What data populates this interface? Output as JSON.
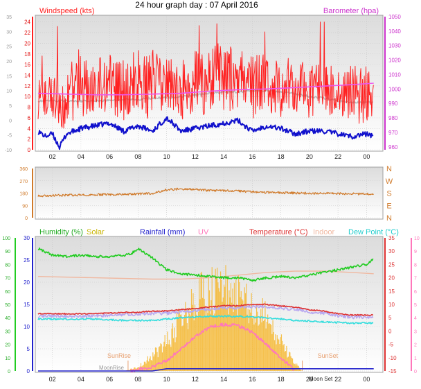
{
  "title": "24 hour graph day : 07 April 2016",
  "colors": {
    "wind": "#ff2020",
    "windDark": "#cc0000",
    "avgwind": "#1010cc",
    "baro": "#cc33cc",
    "baroLine": "#ee55ee",
    "temp_shadow": "#b8b8b8",
    "dir": "#d07a2a",
    "humidity": "#22cc22",
    "solar": "#f5b830",
    "rain": "#2222cc",
    "uv": "#ff77bb",
    "temp": "#dd3333",
    "indoor": "#f0b8a0",
    "dew": "#33dddd",
    "lilac": "#b8a8f0"
  },
  "chart_data": [
    {
      "type": "line",
      "name": "wind-panel",
      "left_axis_label": "Windspeed (kts)",
      "right_axis_label": "Barometer (hpa)",
      "x_ticks": [
        "02",
        "04",
        "06",
        "08",
        "10",
        "12",
        "14",
        "16",
        "18",
        "20",
        "22",
        "00"
      ],
      "x_hours": [
        1,
        3,
        5,
        7,
        9,
        11,
        13,
        15,
        17,
        19,
        21,
        23
      ],
      "left_ticks_wind": [
        0,
        2,
        4,
        6,
        8,
        10,
        12,
        14,
        16,
        18,
        20,
        22,
        24
      ],
      "left_ticks_temp": [
        -10,
        -5,
        0,
        5,
        10,
        15,
        20,
        25,
        30,
        35
      ],
      "right_ticks": [
        960,
        970,
        980,
        990,
        1000,
        1010,
        1020,
        1030,
        1040,
        1050
      ],
      "wind_range": [
        0,
        25
      ],
      "baro_range": [
        958,
        1050
      ],
      "series": [
        {
          "name": "Gust",
          "x_hours": [
            0,
            1,
            2,
            3,
            4,
            5,
            6,
            7,
            8,
            9,
            10,
            11,
            12,
            13,
            14,
            15,
            16,
            17,
            18,
            19,
            20,
            21,
            22,
            23,
            23.5
          ],
          "values": [
            6,
            7,
            9,
            11,
            10,
            11,
            10,
            12,
            12,
            10,
            11,
            12,
            13,
            13,
            12,
            12,
            11,
            11,
            10,
            10,
            10,
            9,
            9,
            9,
            8
          ]
        },
        {
          "name": "Average",
          "x_hours": [
            0,
            0.5,
            1,
            1.5,
            2,
            3,
            4,
            5,
            6,
            7,
            8,
            9,
            10,
            11,
            12,
            13,
            14,
            15,
            16,
            17,
            18,
            19,
            20,
            21,
            22,
            23,
            23.5
          ],
          "values": [
            3.5,
            2.5,
            3,
            0.5,
            3,
            4,
            4.5,
            5,
            3.5,
            4.5,
            3.5,
            6,
            3.5,
            4,
            4.5,
            5,
            5.5,
            3.5,
            4.5,
            4,
            3,
            3.5,
            3.5,
            3,
            2.5,
            3,
            2.5
          ]
        },
        {
          "name": "Barometer",
          "x_hours": [
            0,
            2,
            4,
            6,
            8,
            10,
            12,
            14,
            16,
            18,
            20,
            22,
            23.5
          ],
          "values": [
            997,
            996.5,
            996,
            996,
            996.5,
            997,
            998.5,
            999.5,
            1000,
            1001,
            1002,
            1003,
            1004
          ]
        }
      ]
    },
    {
      "type": "line",
      "name": "direction-panel",
      "left_ticks": [
        0,
        90,
        180,
        270,
        360
      ],
      "right_ticks": [
        "N",
        "W",
        "S",
        "E",
        "N"
      ],
      "y_range": [
        0,
        360
      ],
      "series": [
        {
          "name": "Direction",
          "x_hours": [
            0,
            2,
            4,
            6,
            8,
            9,
            10,
            11,
            12,
            14,
            16,
            18,
            20,
            22,
            23.5
          ],
          "values": [
            158,
            165,
            168,
            170,
            178,
            205,
            210,
            205,
            200,
            195,
            185,
            180,
            178,
            175,
            172
          ]
        }
      ]
    },
    {
      "type": "line",
      "name": "bottom-panel",
      "legend": [
        "Humidity (%)",
        "Solar",
        "Rainfall (mm)",
        "UV",
        "Temperature (°C)",
        "Indoor",
        "Dew Point (°C)"
      ],
      "x_ticks": [
        "02",
        "04",
        "06",
        "08",
        "10",
        "12",
        "14",
        "16",
        "18",
        "20",
        "22",
        "00"
      ],
      "x_hours": [
        1,
        3,
        5,
        7,
        9,
        11,
        13,
        15,
        17,
        19,
        21,
        23
      ],
      "left_ticks_humidity": [
        0,
        10,
        20,
        30,
        40,
        50,
        60,
        70,
        80,
        90,
        100
      ],
      "left_ticks_rain": [
        0,
        5,
        10,
        15,
        20,
        25,
        30
      ],
      "right_ticks_temp": [
        -15,
        -10,
        -5,
        0,
        5,
        10,
        15,
        20,
        25,
        30,
        35
      ],
      "right_ticks_uv": [
        0,
        1,
        2,
        3,
        4,
        5,
        6,
        7,
        8,
        9,
        10
      ],
      "annotations": [
        "SunRise",
        "SunSet",
        "MoonRise",
        "Moon Set"
      ],
      "sunrise_hour": 6.3,
      "sunset_hour": 18.5,
      "series": [
        {
          "name": "Humidity (%)",
          "x_hours": [
            0,
            1,
            2,
            3,
            4,
            5,
            6,
            6.5,
            7,
            8,
            9,
            10,
            11,
            12,
            13,
            14,
            15,
            16,
            17,
            18,
            19,
            20,
            21,
            22,
            23,
            23.5
          ],
          "values": [
            92,
            87,
            86,
            87,
            86,
            86,
            87,
            88,
            92,
            85,
            76,
            73,
            72,
            71,
            70,
            70,
            68,
            70,
            71,
            70,
            72,
            74,
            76,
            78,
            80,
            84
          ]
        },
        {
          "name": "Temperature (°C)",
          "x_hours": [
            0,
            2,
            4,
            6,
            7,
            8,
            9,
            10,
            11,
            12,
            13,
            14,
            15,
            16,
            17,
            18,
            19,
            20,
            21,
            22,
            23,
            23.5
          ],
          "values": [
            6.5,
            6.5,
            6.5,
            7,
            7,
            7.5,
            7.5,
            8,
            8.5,
            9,
            9.5,
            9.5,
            10,
            10,
            9.5,
            9,
            8,
            7.5,
            6.5,
            6,
            6,
            6
          ]
        },
        {
          "name": "Indoor",
          "x_hours": [
            0,
            4,
            8,
            10,
            12,
            14,
            16,
            18,
            20,
            22,
            23.5
          ],
          "values": [
            20.5,
            20,
            19.5,
            19.5,
            20,
            21,
            22,
            22.5,
            22.5,
            22,
            21.5
          ]
        },
        {
          "name": "Dew Point (°C)",
          "x_hours": [
            0,
            2,
            4,
            6,
            8,
            10,
            12,
            14,
            16,
            18,
            20,
            22,
            23.5
          ],
          "values": [
            4.5,
            4.5,
            4.5,
            4,
            4,
            5,
            5.5,
            5.5,
            5,
            4,
            3.5,
            3,
            3
          ]
        },
        {
          "name": "Solar",
          "x_hours": [
            6,
            7,
            8,
            9,
            10,
            11,
            12,
            13,
            14,
            15,
            16,
            17,
            18,
            18.5
          ],
          "values": [
            0,
            1,
            4,
            8,
            14,
            19,
            22,
            22,
            21,
            18,
            14,
            8,
            2,
            0
          ]
        },
        {
          "name": "UV",
          "x_hours": [
            6.5,
            8,
            9,
            10,
            11,
            12,
            13,
            14,
            15,
            16,
            17,
            18
          ],
          "values": [
            0,
            0.3,
            0.8,
            1.6,
            2.6,
            3.3,
            3.5,
            3.4,
            2.9,
            2,
            1,
            0
          ]
        },
        {
          "name": "Rainfall (mm)",
          "x_hours": [
            0,
            8,
            9,
            23.5
          ],
          "values": [
            0,
            0,
            0.5,
            0.5
          ]
        }
      ]
    }
  ]
}
